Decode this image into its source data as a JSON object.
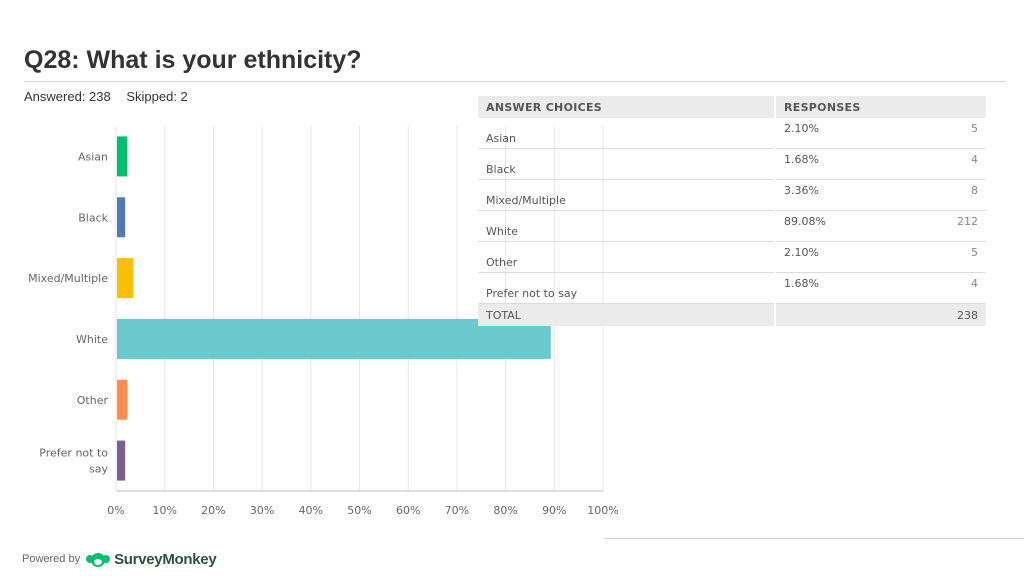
{
  "header": {
    "title": "Q28: What is your ethnicity?",
    "answered": "Answered: 238",
    "skipped": "Skipped: 2"
  },
  "chart_data": {
    "type": "bar",
    "orientation": "horizontal",
    "categories": [
      "Asian",
      "Black",
      "Mixed/Multiple",
      "White",
      "Other",
      "Prefer not to say"
    ],
    "values": [
      2.1,
      1.68,
      3.36,
      89.08,
      2.1,
      1.68
    ],
    "colors": [
      "#00bf6f",
      "#507cb6",
      "#f9be00",
      "#6bc8cd",
      "#ff8b4f",
      "#7d5e90"
    ],
    "xlim": [
      0,
      100
    ],
    "x_ticks": [
      "0%",
      "10%",
      "20%",
      "30%",
      "40%",
      "50%",
      "60%",
      "70%",
      "80%",
      "90%",
      "100%"
    ],
    "grid": true
  },
  "table": {
    "headers": [
      "ANSWER CHOICES",
      "RESPONSES"
    ],
    "rows": [
      {
        "choice": "Asian",
        "percent": "2.10%",
        "count": "5"
      },
      {
        "choice": "Black",
        "percent": "1.68%",
        "count": "4"
      },
      {
        "choice": "Mixed/Multiple",
        "percent": "3.36%",
        "count": "8"
      },
      {
        "choice": "White",
        "percent": "89.08%",
        "count": "212"
      },
      {
        "choice": "Other",
        "percent": "2.10%",
        "count": "5"
      },
      {
        "choice": "Prefer not to say",
        "percent": "1.68%",
        "count": "4"
      }
    ],
    "total_label": "TOTAL",
    "total_count": "238"
  },
  "footer": {
    "powered_by": "Powered by",
    "brand": "SurveyMonkey",
    "logo_color": "#00bf6f"
  }
}
